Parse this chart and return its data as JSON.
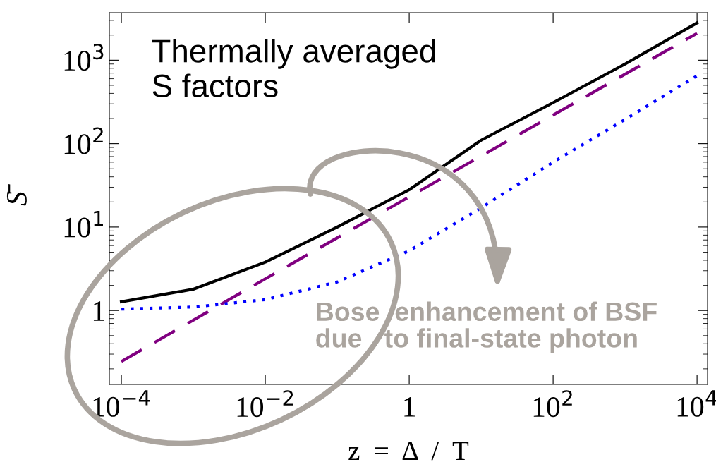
{
  "chart_data": {
    "type": "line",
    "xlabel": "z  =  Δ  /  T",
    "ylabel": "S̄",
    "log": "xy",
    "xlim": [
      6.8e-05,
      14000
    ],
    "ylim": [
      0.13,
      3700
    ],
    "xticks": [
      {
        "value": 0.0001,
        "label": "10$^{−4}$"
      },
      {
        "value": 0.01,
        "label": "10$^{−2}$"
      },
      {
        "value": 1,
        "label": "1"
      },
      {
        "value": 100,
        "label": "10$^{2}$"
      },
      {
        "value": 10000,
        "label": "10$^{4}$"
      }
    ],
    "yticks": [
      {
        "value": 1,
        "label": "1"
      },
      {
        "value": 10,
        "label": "10$^{1}$"
      },
      {
        "value": 100,
        "label": "10$^{2}$"
      },
      {
        "value": 1000,
        "label": "10$^{3}$"
      }
    ],
    "grid": false,
    "series": [
      {
        "color": "#000000",
        "line_style": "solid",
        "x": [
          0.0001,
          0.001,
          0.01,
          0.1,
          1,
          10,
          100,
          1000,
          10000
        ],
        "values": [
          1.27,
          1.8,
          3.8,
          10,
          28,
          110,
          310,
          900,
          2800
        ]
      },
      {
        "color": "#800080",
        "line_style": "dashed",
        "x": [
          0.0001,
          0.01,
          1,
          100,
          10000
        ],
        "values": [
          0.245,
          2.4,
          23,
          220,
          2100
        ]
      },
      {
        "color": "#0000ff",
        "line_style": "dotted",
        "x": [
          0.0001,
          0.001,
          0.01,
          0.1,
          1,
          10,
          100,
          1000,
          10000
        ],
        "values": [
          1.04,
          1.1,
          1.35,
          2.2,
          5.2,
          17,
          60,
          195,
          650
        ]
      }
    ],
    "annotations": [
      "Thermally averaged\nS factors",
      "Bose  enhancement of BSF\ndue   to final-state photon"
    ]
  }
}
